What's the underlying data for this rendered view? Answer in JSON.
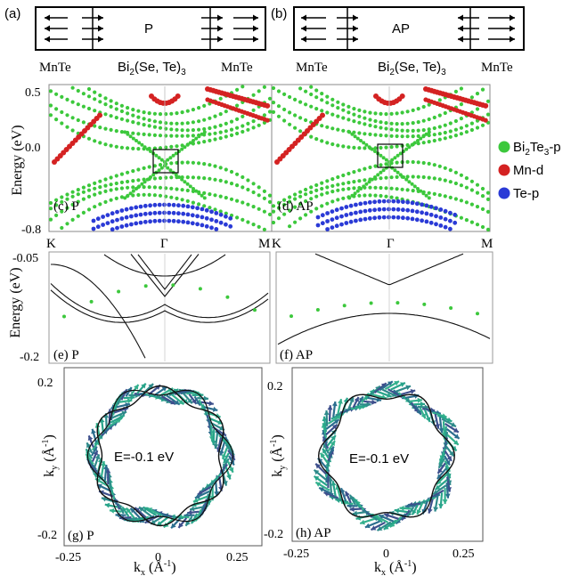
{
  "top": {
    "panel_a": {
      "tag": "(a)",
      "center": "P"
    },
    "panel_b": {
      "tag": "(b)",
      "center": "AP"
    },
    "left_label": "MnTe",
    "mid_label_main": "Bi",
    "mid_label_sub": "2",
    "mid_label_rest": "(Se, Te)",
    "mid_label_sub2": "3",
    "right_label": "MnTe"
  },
  "legend": [
    {
      "text_main": "Bi",
      "sub1": "2",
      "text_mid": "Te",
      "sub2": "3",
      "text_end": "-p",
      "color": "#3cc83c"
    },
    {
      "text_main": "Mn-d",
      "sub1": "",
      "text_mid": "",
      "sub2": "",
      "text_end": "",
      "color": "#d42222"
    },
    {
      "text_main": "Te-p",
      "sub1": "",
      "text_mid": "",
      "sub2": "",
      "text_end": "",
      "color": "#2a3ad6"
    }
  ],
  "bands": {
    "ylabel": "Energy (eV)",
    "yticks": [
      "0.5",
      "0.0",
      "-0.8"
    ],
    "xticks_left": [
      "K",
      "Γ",
      "M"
    ],
    "xticks_right": [
      "K",
      "Γ",
      "M"
    ],
    "panel_c": "(c) P",
    "panel_d": "(d) AP"
  },
  "zoom": {
    "ylabel": "Energy (eV)",
    "yticks": [
      "-0.05",
      "-0.2"
    ],
    "panel_e": "(e) P",
    "panel_f": "(f) AP"
  },
  "fermi": {
    "ylabel_main": "k",
    "ylabel_sub": "y",
    "ylabel_rest": " (Å",
    "ylabel_sup": "-1",
    "ylabel_end": ")",
    "xlabel_main": "k",
    "xlabel_sub": "x",
    "xlabel_rest": " (Å",
    "xlabel_sup": "-1",
    "xlabel_end": ")",
    "yticks": [
      "0.2",
      "0",
      "-0.2"
    ],
    "xticks": [
      "-0.25",
      "0",
      "0.25"
    ],
    "energy_label": "E=-0.1 eV",
    "panel_g": "(g) P",
    "panel_h": "(h) AP"
  },
  "chart_data": [
    {
      "type": "scatter",
      "panel": "(c) P",
      "ylabel": "Energy (eV)",
      "ylim": [
        -0.8,
        0.55
      ],
      "xticks": [
        "K",
        "Γ",
        "M"
      ],
      "series": [
        {
          "name": "Bi2Te3-p",
          "color": "#3cc83c"
        },
        {
          "name": "Mn-d",
          "color": "#d42222"
        },
        {
          "name": "Te-p",
          "color": "#2a3ad6"
        }
      ]
    },
    {
      "type": "scatter",
      "panel": "(d) AP",
      "ylabel": "Energy (eV)",
      "ylim": [
        -0.8,
        0.55
      ],
      "xticks": [
        "K",
        "Γ",
        "M"
      ],
      "series": [
        {
          "name": "Bi2Te3-p",
          "color": "#3cc83c"
        },
        {
          "name": "Mn-d",
          "color": "#d42222"
        },
        {
          "name": "Te-p",
          "color": "#2a3ad6"
        }
      ]
    },
    {
      "type": "line",
      "panel": "(e) P",
      "ylabel": "Energy (eV)",
      "ylim": [
        -0.2,
        -0.05
      ],
      "series": [
        {
          "values": []
        }
      ]
    },
    {
      "type": "line",
      "panel": "(f) AP",
      "ylabel": "Energy (eV)",
      "ylim": [
        -0.2,
        -0.05
      ],
      "series": [
        {
          "values": []
        }
      ]
    },
    {
      "type": "scatter",
      "panel": "(g) P",
      "annotation": "E=-0.1 eV",
      "xlim": [
        -0.3,
        0.3
      ],
      "ylim": [
        -0.22,
        0.22
      ],
      "xticks": [
        "-0.25",
        "0",
        "0.25"
      ],
      "yticks": [
        "0.2",
        "0",
        "-0.2"
      ]
    },
    {
      "type": "scatter",
      "panel": "(h) AP",
      "annotation": "E=-0.1 eV",
      "xlim": [
        -0.3,
        0.3
      ],
      "ylim": [
        -0.22,
        0.22
      ],
      "xticks": [
        "-0.25",
        "0",
        "0.25"
      ],
      "yticks": [
        "0.2",
        "0",
        "-0.2"
      ]
    }
  ]
}
